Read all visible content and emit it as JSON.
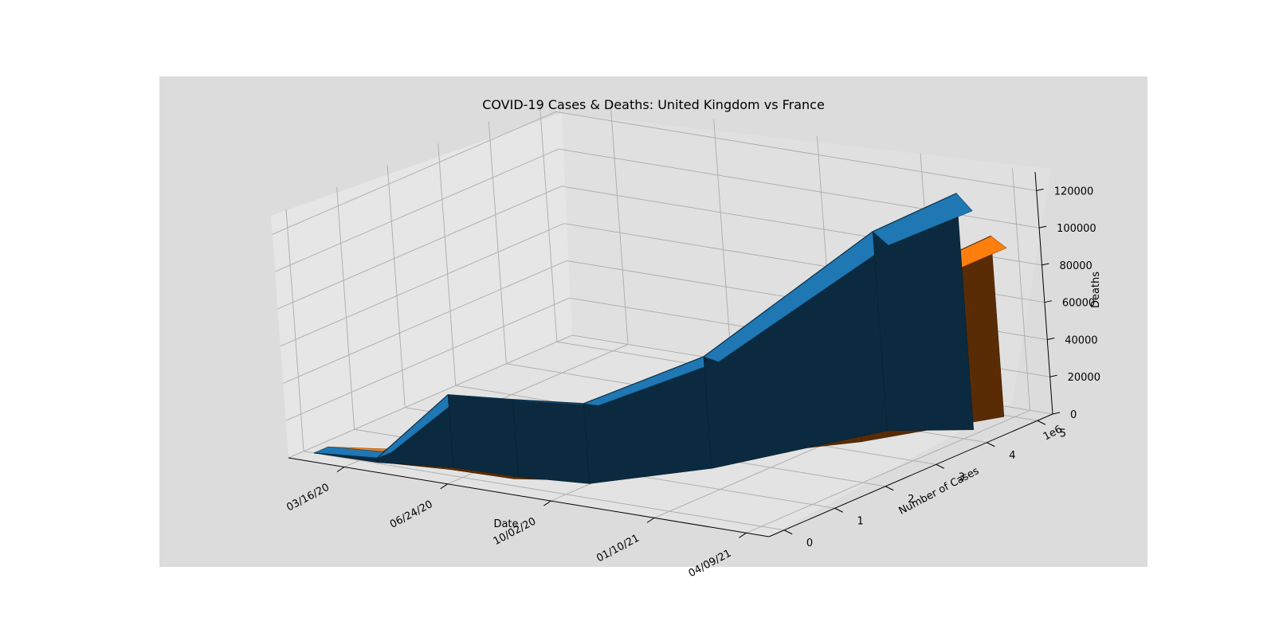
{
  "chart_data": {
    "type": "surface3d",
    "title": "COVID-19 Cases & Deaths: United Kingdom vs France",
    "xlabel": "Date",
    "ylabel": "Number of Cases",
    "zlabel": "Deaths",
    "y_offset_label": "1e6",
    "x_ticks": [
      "03/16/20",
      "06/24/20",
      "10/02/20",
      "01/10/21",
      "04/09/21"
    ],
    "y_ticks": [
      0,
      1,
      2,
      3,
      4,
      5
    ],
    "z_ticks": [
      0,
      20000,
      40000,
      60000,
      80000,
      100000,
      120000
    ],
    "xlim": [
      "01/22/20",
      "05/01/21"
    ],
    "ylim": [
      -0.3,
      5.3
    ],
    "zlim": [
      0,
      130000
    ],
    "grid": true,
    "series": [
      {
        "color": "#1f77b4",
        "x": [
          "02/01/20",
          "04/01/20",
          "06/01/20",
          "08/01/20",
          "10/01/20",
          "12/01/20",
          "02/01/21",
          "04/01/21"
        ],
        "y": [
          0.0,
          0.03,
          0.28,
          0.32,
          0.48,
          1.65,
          3.85,
          4.35
        ],
        "z": [
          0,
          2400,
          39000,
          41500,
          43000,
          60000,
          107000,
          127000
        ]
      },
      {
        "color": "#ff7f0e",
        "x": [
          "02/01/20",
          "04/01/20",
          "06/01/20",
          "08/01/20",
          "10/01/20",
          "12/01/20",
          "02/01/21",
          "04/01/21"
        ],
        "y": [
          0.0,
          0.05,
          0.19,
          0.23,
          0.62,
          2.25,
          3.35,
          4.95
        ],
        "z": [
          0,
          4000,
          29000,
          30500,
          32000,
          54000,
          76000,
          97000
        ]
      }
    ]
  }
}
